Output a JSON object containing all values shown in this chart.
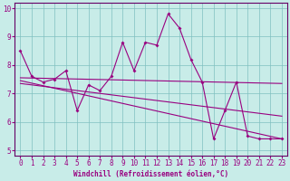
{
  "xlabel": "Windchill (Refroidissement éolien,°C)",
  "background_color": "#c8ece8",
  "grid_color": "#80c0c0",
  "line_color": "#990080",
  "spine_color": "#660066",
  "xlim": [
    -0.5,
    23.5
  ],
  "ylim": [
    4.8,
    10.2
  ],
  "xticks": [
    0,
    1,
    2,
    3,
    4,
    5,
    6,
    7,
    8,
    9,
    10,
    11,
    12,
    13,
    14,
    15,
    16,
    17,
    18,
    19,
    20,
    21,
    22,
    23
  ],
  "yticks": [
    5,
    6,
    7,
    8,
    9,
    10
  ],
  "series1_x": [
    0,
    1,
    2,
    3,
    4,
    5,
    6,
    7,
    8,
    9,
    10,
    11,
    12,
    13,
    14,
    15,
    16,
    17,
    18,
    19,
    20,
    21,
    22,
    23
  ],
  "series1_y": [
    8.5,
    7.6,
    7.4,
    7.5,
    7.8,
    6.4,
    7.3,
    7.1,
    7.6,
    8.8,
    7.8,
    8.8,
    8.7,
    9.8,
    9.3,
    8.2,
    7.4,
    5.4,
    6.4,
    7.4,
    5.5,
    5.4,
    5.4,
    5.4
  ],
  "series2_x": [
    0,
    23
  ],
  "series2_y": [
    7.55,
    7.35
  ],
  "series3_x": [
    0,
    23
  ],
  "series3_y": [
    7.45,
    5.4
  ],
  "series4_x": [
    0,
    23
  ],
  "series4_y": [
    7.35,
    6.2
  ],
  "tick_fontsize": 5.5,
  "xlabel_fontsize": 5.5,
  "marker_size": 2.0,
  "line_width": 0.8
}
